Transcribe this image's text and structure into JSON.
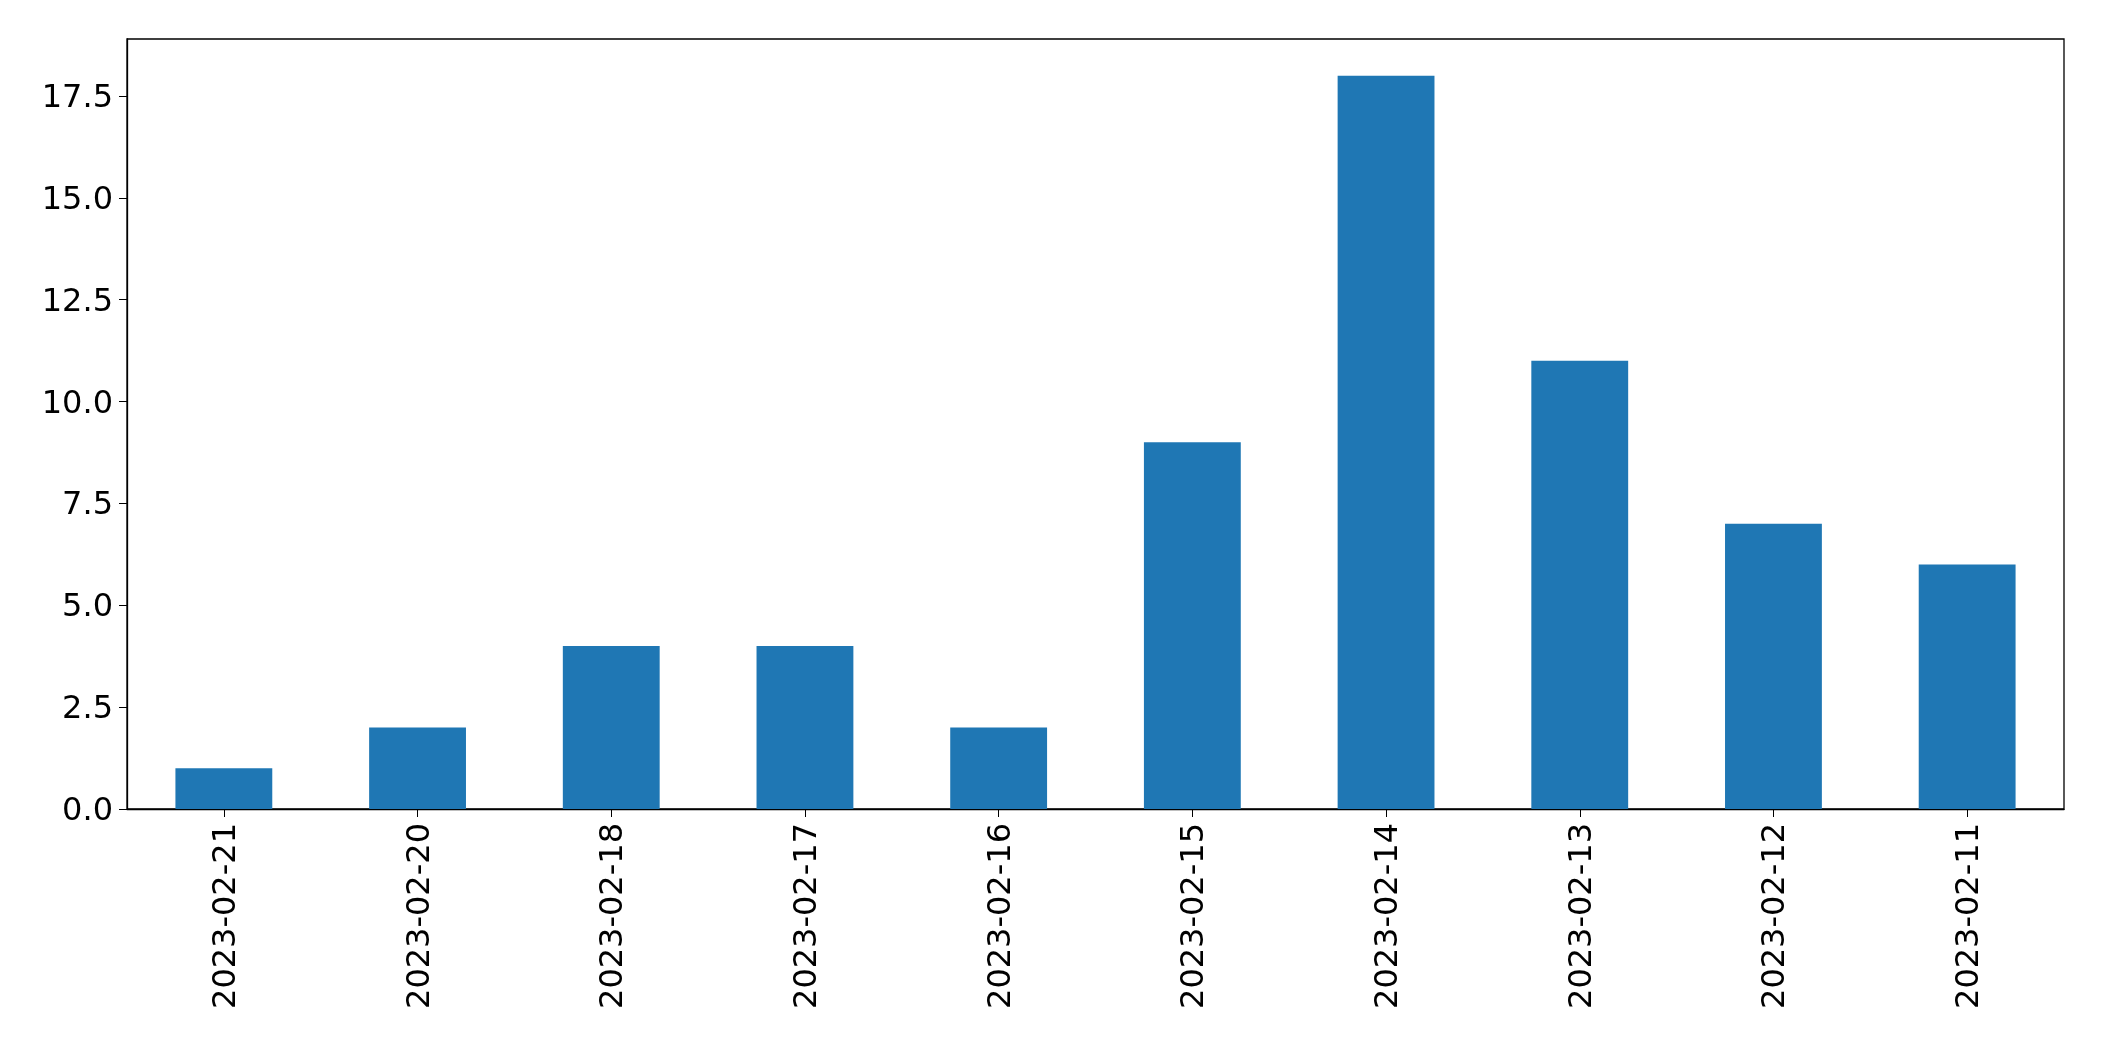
{
  "chart_data": {
    "type": "bar",
    "categories": [
      "2023-02-21",
      "2023-02-20",
      "2023-02-18",
      "2023-02-17",
      "2023-02-16",
      "2023-02-15",
      "2023-02-14",
      "2023-02-13",
      "2023-02-12",
      "2023-02-11"
    ],
    "values": [
      1,
      2,
      4,
      4,
      2,
      9,
      18,
      11,
      7,
      6
    ],
    "color": "#1f77b4",
    "ylim": [
      0,
      18.9
    ],
    "yticks": [
      {
        "value": 0,
        "label": "0.0"
      },
      {
        "value": 2.5,
        "label": "2.5"
      },
      {
        "value": 5,
        "label": "5.0"
      },
      {
        "value": 7.5,
        "label": "7.5"
      },
      {
        "value": 10,
        "label": "10.0"
      },
      {
        "value": 12.5,
        "label": "12.5"
      },
      {
        "value": 15,
        "label": "15.0"
      },
      {
        "value": 17.5,
        "label": "17.5"
      }
    ],
    "tick_labels": "xy"
  }
}
